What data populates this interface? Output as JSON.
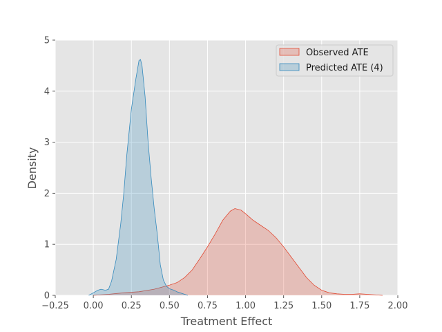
{
  "chart_data": {
    "type": "area",
    "title": "",
    "xlabel": "Treatment Effect",
    "ylabel": "Density",
    "xlim": [
      -0.25,
      2.0
    ],
    "ylim": [
      0,
      5
    ],
    "x_ticks": [
      "−0.25",
      "0.00",
      "0.25",
      "0.50",
      "0.75",
      "1.00",
      "1.25",
      "1.50",
      "1.75",
      "2.00"
    ],
    "x_tick_values": [
      -0.25,
      0,
      0.25,
      0.5,
      0.75,
      1.0,
      1.25,
      1.5,
      1.75,
      2.0
    ],
    "y_ticks": [
      "0",
      "1",
      "2",
      "3",
      "4",
      "5"
    ],
    "y_tick_values": [
      0,
      1,
      2,
      3,
      4,
      5
    ],
    "grid": true,
    "legend_position": "upper right",
    "series": [
      {
        "name": "Observed ATE",
        "color": "#e24a33",
        "points": [
          [
            0.0,
            0.0
          ],
          [
            0.1,
            0.02
          ],
          [
            0.2,
            0.05
          ],
          [
            0.3,
            0.07
          ],
          [
            0.4,
            0.12
          ],
          [
            0.5,
            0.2
          ],
          [
            0.55,
            0.25
          ],
          [
            0.6,
            0.35
          ],
          [
            0.65,
            0.5
          ],
          [
            0.7,
            0.72
          ],
          [
            0.75,
            0.95
          ],
          [
            0.8,
            1.2
          ],
          [
            0.85,
            1.47
          ],
          [
            0.9,
            1.65
          ],
          [
            0.93,
            1.7
          ],
          [
            0.97,
            1.67
          ],
          [
            1.0,
            1.6
          ],
          [
            1.05,
            1.47
          ],
          [
            1.1,
            1.37
          ],
          [
            1.15,
            1.27
          ],
          [
            1.2,
            1.13
          ],
          [
            1.25,
            0.95
          ],
          [
            1.3,
            0.75
          ],
          [
            1.35,
            0.55
          ],
          [
            1.4,
            0.35
          ],
          [
            1.45,
            0.2
          ],
          [
            1.5,
            0.1
          ],
          [
            1.55,
            0.05
          ],
          [
            1.6,
            0.03
          ],
          [
            1.65,
            0.02
          ],
          [
            1.7,
            0.02
          ],
          [
            1.75,
            0.03
          ],
          [
            1.8,
            0.02
          ],
          [
            1.85,
            0.01
          ],
          [
            1.9,
            0.0
          ]
        ]
      },
      {
        "name": "Predicted ATE (4)",
        "color": "#348abd",
        "points": [
          [
            -0.03,
            0.0
          ],
          [
            0.0,
            0.05
          ],
          [
            0.03,
            0.1
          ],
          [
            0.05,
            0.12
          ],
          [
            0.08,
            0.1
          ],
          [
            0.1,
            0.12
          ],
          [
            0.12,
            0.28
          ],
          [
            0.15,
            0.7
          ],
          [
            0.18,
            1.4
          ],
          [
            0.2,
            2.0
          ],
          [
            0.22,
            2.75
          ],
          [
            0.25,
            3.65
          ],
          [
            0.28,
            4.25
          ],
          [
            0.3,
            4.6
          ],
          [
            0.31,
            4.62
          ],
          [
            0.32,
            4.5
          ],
          [
            0.34,
            3.9
          ],
          [
            0.36,
            3.0
          ],
          [
            0.38,
            2.3
          ],
          [
            0.4,
            1.7
          ],
          [
            0.42,
            1.2
          ],
          [
            0.44,
            0.6
          ],
          [
            0.46,
            0.3
          ],
          [
            0.48,
            0.18
          ],
          [
            0.5,
            0.13
          ],
          [
            0.53,
            0.1
          ],
          [
            0.55,
            0.07
          ],
          [
            0.57,
            0.05
          ],
          [
            0.6,
            0.02
          ],
          [
            0.62,
            0.0
          ]
        ]
      }
    ]
  }
}
